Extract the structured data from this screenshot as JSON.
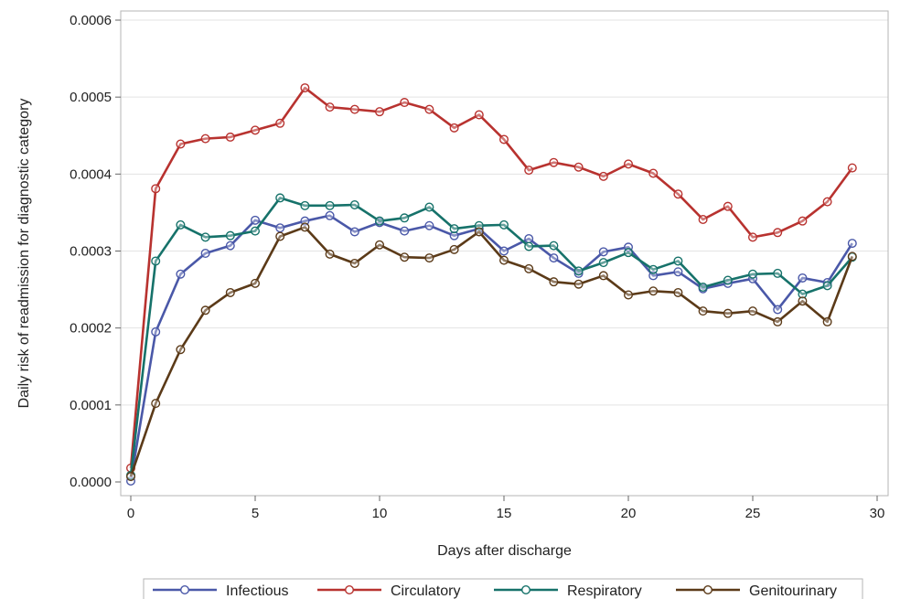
{
  "chart_data": {
    "type": "line",
    "title": "",
    "xlabel": "Days after discharge",
    "ylabel": "Daily risk of readmission for diagnostic category",
    "xlim": [
      0,
      30
    ],
    "ylim": [
      0,
      0.0006
    ],
    "x_ticks": [
      "0",
      "5",
      "10",
      "15",
      "20",
      "25",
      "30"
    ],
    "y_ticks": [
      "0.0000",
      "0.0001",
      "0.0002",
      "0.0003",
      "0.0004",
      "0.0005",
      "0.0006"
    ],
    "grid": "horizontal",
    "legend_position": "bottom",
    "x": [
      0,
      1,
      2,
      3,
      4,
      5,
      6,
      7,
      8,
      9,
      10,
      11,
      12,
      13,
      14,
      15,
      16,
      17,
      18,
      19,
      20,
      21,
      22,
      23,
      24,
      25,
      26,
      27,
      28,
      29
    ],
    "series": [
      {
        "name": "Infectious",
        "color": "#4a58a8",
        "marker": "open-circle",
        "values": [
          1.2e-06,
          0.000195,
          0.00027,
          0.000297,
          0.000307,
          0.00034,
          0.00033,
          0.000339,
          0.000346,
          0.000325,
          0.000337,
          0.000326,
          0.000333,
          0.00032,
          0.000329,
          0.0003,
          0.000316,
          0.000291,
          0.000271,
          0.000299,
          0.000305,
          0.000268,
          0.000273,
          0.000251,
          0.000258,
          0.000264,
          0.000224,
          0.000265,
          0.000259,
          0.00031
        ]
      },
      {
        "name": "Circulatory",
        "color": "#b8322f",
        "marker": "open-circle",
        "values": [
          1.8e-05,
          0.000381,
          0.000439,
          0.000446,
          0.000448,
          0.000457,
          0.000466,
          0.000512,
          0.000487,
          0.000484,
          0.000481,
          0.000493,
          0.000484,
          0.00046,
          0.000477,
          0.000445,
          0.000405,
          0.000415,
          0.000409,
          0.000397,
          0.000413,
          0.000401,
          0.000374,
          0.000341,
          0.000358,
          0.000318,
          0.000324,
          0.000339,
          0.000364,
          0.000408
        ]
      },
      {
        "name": "Respiratory",
        "color": "#16726a",
        "marker": "open-circle",
        "values": [
          8.5e-06,
          0.000287,
          0.000334,
          0.000318,
          0.00032,
          0.000326,
          0.000369,
          0.000359,
          0.000359,
          0.00036,
          0.000339,
          0.000343,
          0.000357,
          0.000329,
          0.000333,
          0.000334,
          0.000306,
          0.000307,
          0.000274,
          0.000285,
          0.000298,
          0.000276,
          0.000287,
          0.000253,
          0.000262,
          0.00027,
          0.000271,
          0.000244,
          0.000255,
          0.000292
        ]
      },
      {
        "name": "Genitourinary",
        "color": "#5b3a18",
        "marker": "open-circle",
        "values": [
          7e-06,
          0.000102,
          0.000172,
          0.000223,
          0.000246,
          0.000258,
          0.000319,
          0.000331,
          0.000296,
          0.000284,
          0.000308,
          0.000292,
          0.000291,
          0.000302,
          0.000325,
          0.000288,
          0.000277,
          0.00026,
          0.000257,
          0.000268,
          0.000243,
          0.000248,
          0.000246,
          0.000222,
          0.000219,
          0.000222,
          0.000208,
          0.000235,
          0.000208,
          0.000293
        ]
      }
    ]
  }
}
